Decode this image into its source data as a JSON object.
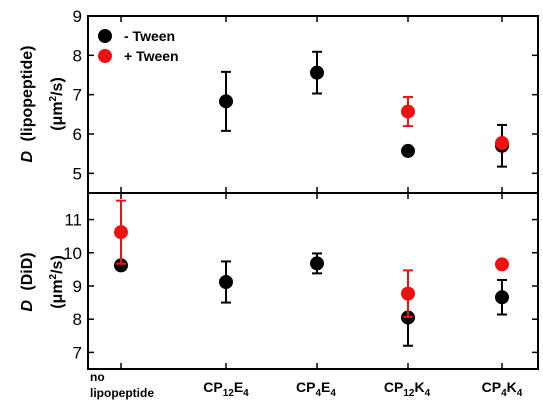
{
  "chart_data": [
    {
      "panel": "top",
      "type": "scatter",
      "ylabel_var": "D",
      "ylabel_name": "(lipopeptide)",
      "ylabel_unit_mu": "μm",
      "ylabel_unit_exp": "2",
      "ylabel_unit_rest": "/s",
      "ylim": [
        4.5,
        9.0
      ],
      "yticks": [
        "5",
        "6",
        "7",
        "8",
        "9"
      ],
      "legend": {
        "position": "top-left",
        "entries": [
          "- Tween",
          "+ Tween"
        ]
      },
      "categories": [
        "no lipopeptide",
        "CP12E4",
        "CP4E4",
        "CP12K4",
        "CP4K4"
      ],
      "series": [
        {
          "name": "- Tween",
          "color": "#000000",
          "points": [
            {
              "category": "CP12E4",
              "y": 6.83,
              "err": 0.75
            },
            {
              "category": "CP4E4",
              "y": 7.56,
              "err": 0.53
            },
            {
              "category": "CP12K4",
              "y": 5.57,
              "err": 0.0
            },
            {
              "category": "CP4K4",
              "y": 5.7,
              "err": 0.53
            }
          ]
        },
        {
          "name": "+ Tween",
          "color": "#ee1111",
          "points": [
            {
              "category": "CP12K4",
              "y": 6.57,
              "err": 0.37
            },
            {
              "category": "CP4K4",
              "y": 5.77,
              "err": 0.0
            }
          ]
        }
      ]
    },
    {
      "panel": "bottom",
      "type": "scatter",
      "ylabel_var": "D",
      "ylabel_name": "(DiD)",
      "ylabel_unit_mu": "μm",
      "ylabel_unit_exp": "2",
      "ylabel_unit_rest": "/s",
      "ylim": [
        6.5,
        11.8
      ],
      "yticks": [
        "7",
        "8",
        "9",
        "10",
        "11"
      ],
      "categories": [
        "no lipopeptide",
        "CP12E4",
        "CP4E4",
        "CP12K4",
        "CP4K4"
      ],
      "series": [
        {
          "name": "- Tween",
          "color": "#000000",
          "points": [
            {
              "category": "no lipopeptide",
              "y": 9.62,
              "err": 0.0
            },
            {
              "category": "CP12E4",
              "y": 9.12,
              "err": 0.62
            },
            {
              "category": "CP4E4",
              "y": 9.68,
              "err": 0.3
            },
            {
              "category": "CP12K4",
              "y": 8.05,
              "err": 0.85
            },
            {
              "category": "CP4K4",
              "y": 8.66,
              "err": 0.52
            }
          ]
        },
        {
          "name": "+ Tween",
          "color": "#ee1111",
          "points": [
            {
              "category": "no lipopeptide",
              "y": 10.62,
              "err": 0.95
            },
            {
              "category": "CP12K4",
              "y": 8.77,
              "err": 0.7
            },
            {
              "category": "CP4K4",
              "y": 9.65,
              "err": 0.0
            }
          ]
        }
      ]
    }
  ],
  "xaxis": {
    "labels": [
      {
        "lines": [
          "no",
          "lipopeptide"
        ]
      },
      {
        "base": "CP",
        "sub1": "12",
        "mid": "E",
        "sub2": "4"
      },
      {
        "base": "CP",
        "sub1": "4",
        "mid": "E",
        "sub2": "4"
      },
      {
        "base": "CP",
        "sub1": "12",
        "mid": "K",
        "sub2": "4"
      },
      {
        "base": "CP",
        "sub1": "4",
        "mid": "K",
        "sub2": "4"
      }
    ]
  }
}
